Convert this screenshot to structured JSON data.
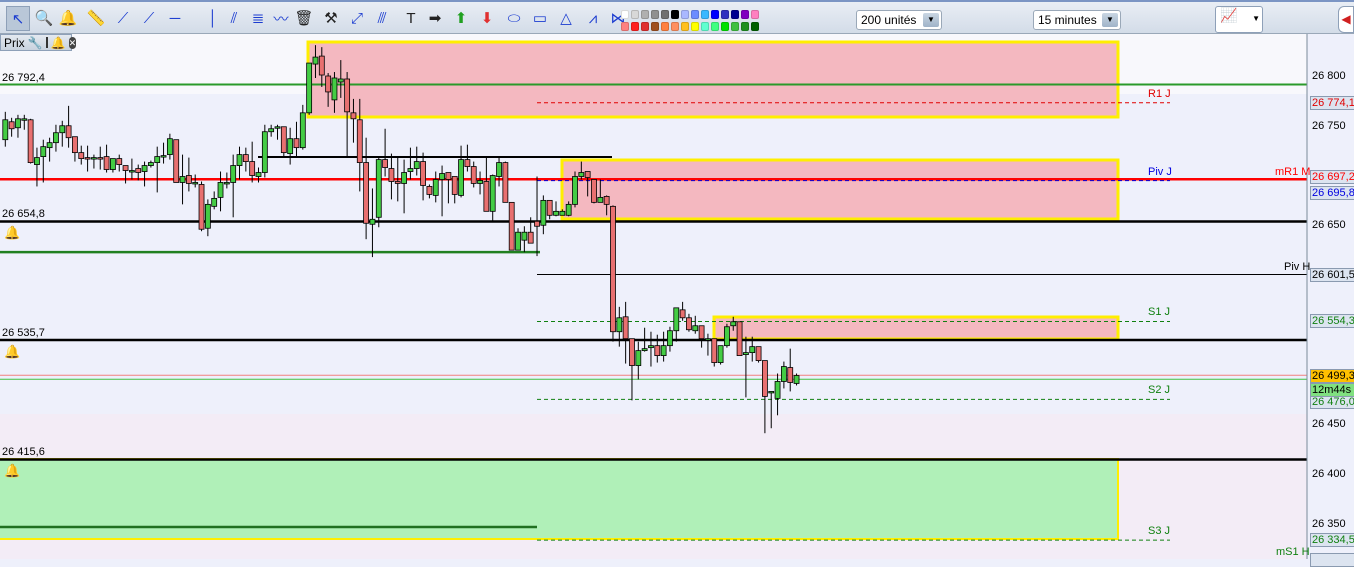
{
  "toolbar": {
    "icons": [
      {
        "name": "cursor-icon",
        "glyph": "↖"
      },
      {
        "name": "magnifier-icon",
        "glyph": "🔍"
      },
      {
        "name": "alert-bell-icon",
        "glyph": "🔔"
      },
      {
        "name": "ruler-icon",
        "glyph": "📏"
      },
      {
        "name": "segment-icon",
        "glyph": "⟋"
      },
      {
        "name": "trendline-icon",
        "glyph": "⟋"
      },
      {
        "name": "horizontal-line-icon",
        "glyph": "─"
      },
      {
        "name": "vertical-line-icon",
        "glyph": "│"
      },
      {
        "name": "parallel-channel-icon",
        "glyph": "⫽"
      },
      {
        "name": "fibonacci-icon",
        "glyph": "≣"
      },
      {
        "name": "regression-channel-icon",
        "glyph": "〰"
      },
      {
        "name": "trash-icon",
        "glyph": "🗑"
      },
      {
        "name": "tools-icon",
        "glyph": "⚒"
      },
      {
        "name": "ray-icon",
        "glyph": "⤢"
      },
      {
        "name": "fan-icon",
        "glyph": "⫻"
      },
      {
        "name": "text-icon",
        "glyph": "T"
      },
      {
        "name": "arrow-right-icon",
        "glyph": "➡"
      },
      {
        "name": "arrow-up-icon",
        "glyph": "⬆"
      },
      {
        "name": "arrow-down-icon",
        "glyph": "⬇"
      },
      {
        "name": "ellipse-icon",
        "glyph": "⬭"
      },
      {
        "name": "rectangle-icon",
        "glyph": "▭"
      },
      {
        "name": "triangle-icon",
        "glyph": "△"
      },
      {
        "name": "zone-icon",
        "glyph": "⩘"
      },
      {
        "name": "gann-fan-icon",
        "glyph": "⋈"
      }
    ],
    "palette_top": [
      "#ffffff",
      "#d8d8d8",
      "#b0b0b0",
      "#909090",
      "#707070",
      "#000000",
      "#aab8ff",
      "#6b8cff",
      "#38b8ff",
      "#0000ff",
      "#3030c0",
      "#000090",
      "#8000c0",
      "#ff80c0"
    ],
    "palette_bottom": [
      "#ff8080",
      "#ff2020",
      "#e03030",
      "#a05020",
      "#ff8040",
      "#ff9060",
      "#ffc020",
      "#ffff00",
      "#60ffd0",
      "#40ff80",
      "#00e000",
      "#40c040",
      "#209020",
      "#006000"
    ],
    "units_select": "200 unités",
    "timeframe_select": "15 minutes",
    "dropdown_arrow": "▼"
  },
  "panel": {
    "title": "Prix",
    "icons": [
      "wrench-icon",
      "window-icon",
      "bell-icon",
      "close-icon"
    ]
  },
  "levels_left": [
    {
      "value": "26 792,4",
      "price": 26792.4,
      "color": "#2a9a2a"
    },
    {
      "value": "26 654,8",
      "price": 26654.8,
      "color": "#000000"
    },
    {
      "value": "26 535,7",
      "price": 26535.7,
      "color": "#000000"
    },
    {
      "value": "26 415,6",
      "price": 26415.6,
      "color": "#000000"
    }
  ],
  "pivots": [
    {
      "label": "R1 J",
      "price": 26774.1,
      "box": "26 774,1",
      "color": "#e00000"
    },
    {
      "label": "Piv J",
      "price": 26695.8,
      "box": "26 695,8",
      "color": "#0000e0"
    },
    {
      "label": "S1 J",
      "price": 26554.3,
      "box": "26 554,3",
      "color": "#108010"
    },
    {
      "label": "S2 J",
      "price": 26476.0,
      "box": "26 476,0",
      "color": "#108010"
    },
    {
      "label": "S3 J",
      "price": 26334.5,
      "box": "26 334,5",
      "color": "#108010"
    }
  ],
  "other_levels": [
    {
      "label": "mR1 M",
      "price": 26697.2,
      "box": "26 697,2",
      "color": "#ff0000"
    },
    {
      "label": "Piv H",
      "price": 26601.5,
      "box": "26 601,5",
      "color": "#000000"
    },
    {
      "label": "mS1 H",
      "color": "#108010"
    }
  ],
  "last_price": {
    "value": "26 499,3",
    "price": 26499.3,
    "bg": "#ffc000"
  },
  "countdown": {
    "value": "12m44s",
    "bg": "#80e080"
  },
  "chart_data": {
    "type": "candlestick",
    "y_ticks": [
      26800,
      26750,
      26650,
      26450,
      26400,
      26350
    ],
    "y_tick_labels": [
      "26 800",
      "26 750",
      "26 650",
      "26 450",
      "26 400",
      "26 350"
    ],
    "colors": {
      "up": "#44cc44",
      "down": "#e87070"
    },
    "ohlc": [
      [
        26737,
        26765,
        26730,
        26757
      ],
      [
        26755,
        26759,
        26740,
        26748
      ],
      [
        26749,
        26762,
        26739,
        26758
      ],
      [
        26757,
        26762,
        26747,
        26758
      ],
      [
        26757,
        26758,
        26713,
        26714
      ],
      [
        26712,
        26729,
        26690,
        26719
      ],
      [
        26720,
        26737,
        26694,
        26730
      ],
      [
        26729,
        26739,
        26715,
        26734
      ],
      [
        26734,
        26752,
        26725,
        26744
      ],
      [
        26744,
        26756,
        26730,
        26751
      ],
      [
        26751,
        26771,
        26729,
        26739
      ],
      [
        26740,
        26740,
        26715,
        26724
      ],
      [
        26724,
        26731,
        26712,
        26718
      ],
      [
        26719,
        26731,
        26705,
        26718
      ],
      [
        26718,
        26722,
        26708,
        26719
      ],
      [
        26719,
        26730,
        26707,
        26718
      ],
      [
        26720,
        26732,
        26704,
        26707
      ],
      [
        26707,
        26718,
        26704,
        26718
      ],
      [
        26718,
        26722,
        26705,
        26712
      ],
      [
        26711,
        26711,
        26693,
        26706
      ],
      [
        26706,
        26718,
        26697,
        26706
      ],
      [
        26708,
        26712,
        26696,
        26704
      ],
      [
        26705,
        26715,
        26690,
        26711
      ],
      [
        26711,
        26716,
        26709,
        26714
      ],
      [
        26714,
        26730,
        26684,
        26720
      ],
      [
        26721,
        26734,
        26713,
        26721
      ],
      [
        26722,
        26743,
        26717,
        26738
      ],
      [
        26737,
        26737,
        26694,
        26694
      ],
      [
        26694,
        26722,
        26672,
        26700
      ],
      [
        26701,
        26719,
        26685,
        26693
      ],
      [
        26694,
        26702,
        26689,
        26694
      ],
      [
        26692,
        26695,
        26645,
        26647
      ],
      [
        26648,
        26677,
        26640,
        26672
      ],
      [
        26670,
        26685,
        26667,
        26678
      ],
      [
        26679,
        26705,
        26665,
        26694
      ],
      [
        26694,
        26704,
        26688,
        26694
      ],
      [
        26694,
        26722,
        26659,
        26711
      ],
      [
        26711,
        26730,
        26697,
        26722
      ],
      [
        26722,
        26729,
        26705,
        26715
      ],
      [
        26715,
        26735,
        26694,
        26701
      ],
      [
        26700,
        26709,
        26694,
        26704
      ],
      [
        26704,
        26752,
        26699,
        26745
      ],
      [
        26745,
        26752,
        26740,
        26748
      ],
      [
        26749,
        26752,
        26737,
        26750
      ],
      [
        26750,
        26750,
        26720,
        26724
      ],
      [
        26723,
        26749,
        26712,
        26738
      ],
      [
        26738,
        26755,
        26720,
        26729
      ],
      [
        26729,
        26772,
        26727,
        26764
      ],
      [
        26764,
        26814,
        26762,
        26814
      ],
      [
        26813,
        26832,
        26799,
        26820
      ],
      [
        26821,
        26830,
        26790,
        26802
      ],
      [
        26801,
        26804,
        26770,
        26785
      ],
      [
        26777,
        26805,
        26764,
        26799
      ],
      [
        26795,
        26817,
        26779,
        26798
      ],
      [
        26798,
        26805,
        26720,
        26765
      ],
      [
        26764,
        26778,
        26734,
        26758
      ],
      [
        26757,
        26778,
        26685,
        26714
      ],
      [
        26714,
        26739,
        26637,
        26653
      ],
      [
        26652,
        26688,
        26619,
        26657
      ],
      [
        26659,
        26719,
        26649,
        26717
      ],
      [
        26717,
        26748,
        26700,
        26709
      ],
      [
        26708,
        26723,
        26677,
        26695
      ],
      [
        26695,
        26720,
        26675,
        26693
      ],
      [
        26693,
        26717,
        26663,
        26704
      ],
      [
        26705,
        26729,
        26697,
        26708
      ],
      [
        26708,
        26730,
        26701,
        26715
      ],
      [
        26715,
        26724,
        26676,
        26691
      ],
      [
        26690,
        26692,
        26678,
        26682
      ],
      [
        26681,
        26705,
        26674,
        26697
      ],
      [
        26697,
        26711,
        26660,
        26703
      ],
      [
        26704,
        26704,
        26673,
        26697
      ],
      [
        26700,
        26700,
        26673,
        26682
      ],
      [
        26681,
        26731,
        26679,
        26717
      ],
      [
        26717,
        26732,
        26705,
        26710
      ],
      [
        26710,
        26715,
        26689,
        26693
      ],
      [
        26693,
        26705,
        26682,
        26696
      ],
      [
        26695,
        26719,
        26665,
        26665
      ],
      [
        26665,
        26702,
        26654,
        26701
      ],
      [
        26700,
        26719,
        26690,
        26714
      ],
      [
        26714,
        26715,
        26674,
        26674
      ],
      [
        26674,
        26674,
        26626,
        26626
      ],
      [
        26626,
        26648,
        26626,
        26644
      ],
      [
        26636,
        26650,
        26624,
        26644
      ],
      [
        26644,
        26659,
        26633,
        26633
      ],
      [
        26655,
        26700,
        26620,
        26650
      ],
      [
        26651,
        26681,
        26642,
        26676
      ],
      [
        26676,
        26676,
        26657,
        26661
      ],
      [
        26661,
        26675,
        26660,
        26665
      ],
      [
        26661,
        26667,
        26661,
        26665
      ],
      [
        26661,
        26675,
        26660,
        26672
      ],
      [
        26672,
        26705,
        26669,
        26700
      ],
      [
        26700,
        26715,
        26697,
        26704
      ],
      [
        26705,
        26705,
        26680,
        26699
      ],
      [
        26697,
        26697,
        26673,
        26674
      ],
      [
        26674,
        26697,
        26674,
        26679
      ],
      [
        26680,
        26681,
        26661,
        26672
      ],
      [
        26670,
        26671,
        26534,
        26544
      ],
      [
        26544,
        26569,
        26529,
        26558
      ],
      [
        26559,
        26574,
        26512,
        26537
      ],
      [
        26537,
        26537,
        26475,
        26510
      ],
      [
        26510,
        26534,
        26496,
        26525
      ],
      [
        26525,
        26548,
        26524,
        26527
      ],
      [
        26528,
        26544,
        26509,
        26530
      ],
      [
        26530,
        26541,
        26513,
        26520
      ],
      [
        26520,
        26544,
        26514,
        26530
      ],
      [
        26530,
        26549,
        26524,
        26545
      ],
      [
        26545,
        26568,
        26534,
        26568
      ],
      [
        26566,
        26574,
        26555,
        26558
      ],
      [
        26558,
        26562,
        26544,
        26546
      ],
      [
        26545,
        26560,
        26542,
        26550
      ],
      [
        26550,
        26550,
        26528,
        26537
      ],
      [
        26537,
        26542,
        26520,
        26537
      ],
      [
        26537,
        26537,
        26509,
        26513
      ],
      [
        26513,
        26530,
        26511,
        26530
      ],
      [
        26530,
        26552,
        26528,
        26549
      ],
      [
        26550,
        26559,
        26545,
        26554
      ],
      [
        26554,
        26554,
        26520,
        26520
      ],
      [
        26521,
        26539,
        26478,
        26523
      ],
      [
        26523,
        26539,
        26514,
        26529
      ],
      [
        26529,
        26529,
        26513,
        26515
      ],
      [
        26515,
        26515,
        26442,
        26479
      ],
      [
        26484,
        26484,
        26447,
        26484
      ],
      [
        26477,
        26502,
        26460,
        26494
      ],
      [
        26494,
        26514,
        26487,
        26509
      ],
      [
        26508,
        26527,
        26484,
        26493
      ],
      [
        26492,
        26502,
        26490,
        26500
      ]
    ]
  }
}
